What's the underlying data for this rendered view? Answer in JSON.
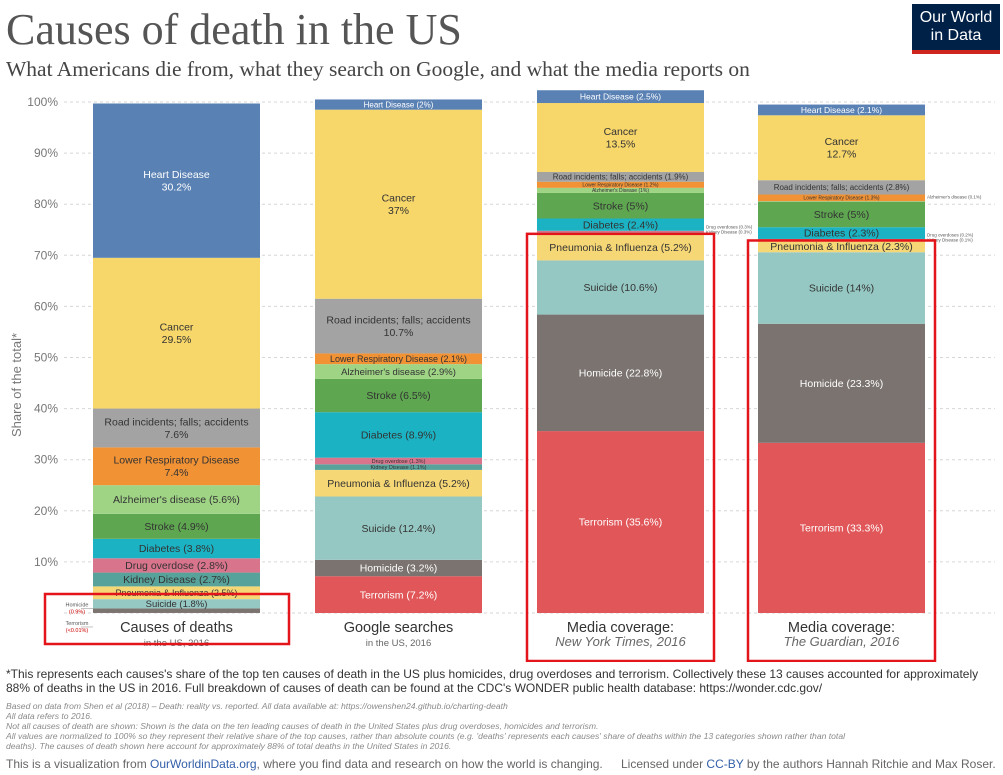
{
  "header": {
    "title": "Causes of death in the US",
    "subtitle": "What Americans die from, what they search on Google, and what the media reports on",
    "logo_line1": "Our World",
    "logo_line2": "in Data"
  },
  "chart_data": {
    "type": "bar",
    "stacked": true,
    "ylabel": "Share of the total*",
    "ylim": [
      0,
      100
    ],
    "yticks": [
      "10%",
      "20%",
      "30%",
      "40%",
      "50%",
      "60%",
      "70%",
      "80%",
      "90%",
      "100%"
    ],
    "grid": true,
    "categories": [
      {
        "label": "Causes of deaths",
        "sub": "in the US, 2016"
      },
      {
        "label": "Google searches",
        "sub": "in the US, 2016"
      },
      {
        "label": "Media coverage:",
        "sub": "New York Times, 2016"
      },
      {
        "label": "Media coverage:",
        "sub": "The Guardian, 2016"
      }
    ],
    "colors": {
      "Terrorism": "#e15759",
      "Homicide": "#7a7370",
      "Suicide": "#96c8c3",
      "Pneumonia & Influenza": "#f6d776",
      "Kidney Disease": "#57a29a",
      "Drug overdose": "#d9748d",
      "Diabetes": "#1bb3c3",
      "Stroke": "#5ea650",
      "Alzheimer's disease": "#9fd485",
      "Lower Respiratory Disease": "#f19235",
      "Road incidents; falls; accidents": "#a3a3a3",
      "Cancer": "#f7d66a",
      "Heart Disease": "#5a81b4"
    },
    "series": [
      {
        "name": "Terrorism",
        "values": [
          0.01,
          7.2,
          35.6,
          33.3
        ]
      },
      {
        "name": "Homicide",
        "values": [
          0.9,
          3.2,
          22.8,
          23.3
        ]
      },
      {
        "name": "Suicide",
        "values": [
          1.8,
          12.4,
          10.6,
          14.0
        ]
      },
      {
        "name": "Pneumonia & Influenza",
        "values": [
          2.5,
          5.2,
          5.2,
          2.3
        ]
      },
      {
        "name": "Kidney Disease",
        "values": [
          2.7,
          1.1,
          0.3,
          0.1
        ]
      },
      {
        "name": "Drug overdose",
        "values": [
          2.8,
          1.3,
          0.3,
          0.2
        ]
      },
      {
        "name": "Diabetes",
        "values": [
          3.8,
          8.9,
          2.4,
          2.3
        ]
      },
      {
        "name": "Stroke",
        "values": [
          4.9,
          6.5,
          5.0,
          5.0
        ]
      },
      {
        "name": "Alzheimer's disease",
        "values": [
          5.6,
          2.9,
          1.0,
          0.1
        ]
      },
      {
        "name": "Lower Respiratory Disease",
        "values": [
          7.4,
          2.1,
          1.2,
          1.3
        ]
      },
      {
        "name": "Road incidents; falls; accidents",
        "values": [
          7.6,
          10.7,
          1.9,
          2.8
        ]
      },
      {
        "name": "Cancer",
        "values": [
          29.5,
          37.0,
          13.5,
          12.7
        ]
      },
      {
        "name": "Heart Disease",
        "values": [
          30.2,
          2.0,
          2.5,
          2.1
        ]
      }
    ],
    "bar_labels": [
      [
        {
          "series": "Heart Disease",
          "lines": [
            "Heart Disease",
            "30.2%"
          ],
          "color": "#ffffff"
        },
        {
          "series": "Cancer",
          "lines": [
            "Cancer",
            "29.5%"
          ]
        },
        {
          "series": "Road incidents; falls; accidents",
          "lines": [
            "Road incidents; falls; accidents",
            "7.6%"
          ]
        },
        {
          "series": "Lower Respiratory Disease",
          "lines": [
            "Lower Respiratory Disease",
            "7.4%"
          ]
        },
        {
          "series": "Alzheimer's disease",
          "lines": [
            "Alzheimer's disease (5.6%)"
          ]
        },
        {
          "series": "Stroke",
          "lines": [
            "Stroke (4.9%)"
          ]
        },
        {
          "series": "Diabetes",
          "lines": [
            "Diabetes (3.8%)"
          ]
        },
        {
          "series": "Drug overdose",
          "lines": [
            "Drug overdose (2.8%)"
          ]
        },
        {
          "series": "Kidney Disease",
          "lines": [
            "Kidney Disease (2.7%)"
          ]
        },
        {
          "series": "Pneumonia & Influenza",
          "lines": [
            "Pneumonia & Influenza (2.5%)"
          ],
          "size": 9
        },
        {
          "series": "Suicide",
          "lines": [
            "Suicide (1.8%)"
          ],
          "size": 9.5
        }
      ],
      [
        {
          "series": "Heart Disease",
          "lines": [
            "Heart Disease (2%)"
          ],
          "color": "#ffffff",
          "size": 8
        },
        {
          "series": "Cancer",
          "lines": [
            "Cancer",
            "37%"
          ]
        },
        {
          "series": "Road incidents; falls; accidents",
          "lines": [
            "Road incidents; falls; accidents",
            "10.7%"
          ]
        },
        {
          "series": "Lower Respiratory Disease",
          "lines": [
            "Lower Respiratory Disease (2.1%)"
          ],
          "size": 9
        },
        {
          "series": "Alzheimer's disease",
          "lines": [
            "Alzheimer's disease (2.9%)"
          ],
          "size": 9.5
        },
        {
          "series": "Stroke",
          "lines": [
            "Stroke (6.5%)"
          ]
        },
        {
          "series": "Diabetes",
          "lines": [
            "Diabetes (8.9%)"
          ]
        },
        {
          "series": "Drug overdose",
          "lines": [
            "Drug overdose (1.3%)"
          ],
          "size": 5.5
        },
        {
          "series": "Kidney Disease",
          "lines": [
            "Kidney Disease (1.1%)"
          ],
          "size": 5.5
        },
        {
          "series": "Pneumonia & Influenza",
          "lines": [
            "Pneumonia & Influenza (5.2%)"
          ]
        },
        {
          "series": "Suicide",
          "lines": [
            "Suicide (12.4%)"
          ]
        },
        {
          "series": "Homicide",
          "lines": [
            "Homicide (3.2%)"
          ],
          "color": "#ffffff"
        },
        {
          "series": "Terrorism",
          "lines": [
            "Terrorism (7.2%)"
          ],
          "color": "#ffffff"
        }
      ],
      [
        {
          "series": "Heart Disease",
          "lines": [
            "Heart Disease (2.5%)"
          ],
          "color": "#ffffff",
          "size": 8.5
        },
        {
          "series": "Cancer",
          "lines": [
            "Cancer",
            "13.5%"
          ]
        },
        {
          "series": "Road incidents; falls; accidents",
          "lines": [
            "Road incidents; falls; accidents (1.9%)"
          ],
          "size": 8
        },
        {
          "series": "Lower Respiratory Disease",
          "lines": [
            "Lower Respiratory Disease (1.2%)"
          ],
          "size": 5
        },
        {
          "series": "Alzheimer's disease",
          "lines": [
            "Alzheimer's Disease (1%)"
          ],
          "size": 5
        },
        {
          "series": "Stroke",
          "lines": [
            "Stroke (5%)"
          ]
        },
        {
          "series": "Diabetes",
          "lines": [
            "Diabetes (2.4%)"
          ]
        },
        {
          "series": "Pneumonia & Influenza",
          "lines": [
            "Pneumonia & Influenza (5.2%)"
          ]
        },
        {
          "series": "Suicide",
          "lines": [
            "Suicide (10.6%)"
          ]
        },
        {
          "series": "Homicide",
          "lines": [
            "Homicide (22.8%)"
          ],
          "color": "#ffffff"
        },
        {
          "series": "Terrorism",
          "lines": [
            "Terrorism (35.6%)"
          ],
          "color": "#ffffff"
        }
      ],
      [
        {
          "series": "Heart Disease",
          "lines": [
            "Heart Disease (2.1%)"
          ],
          "color": "#ffffff",
          "size": 8.5
        },
        {
          "series": "Cancer",
          "lines": [
            "Cancer",
            "12.7%"
          ]
        },
        {
          "series": "Road incidents; falls; accidents",
          "lines": [
            "Road incidents; falls; accidents (2.8%)"
          ],
          "size": 8
        },
        {
          "series": "Lower Respiratory Disease",
          "lines": [
            "Lower Respiratory Disease (1.3%)"
          ],
          "size": 5
        },
        {
          "series": "Stroke",
          "lines": [
            "Stroke (5%)"
          ]
        },
        {
          "series": "Diabetes",
          "lines": [
            "Diabetes (2.3%)"
          ]
        },
        {
          "series": "Pneumonia & Influenza",
          "lines": [
            "Pneumonia & Influenza (2.3%)"
          ]
        },
        {
          "series": "Suicide",
          "lines": [
            "Suicide (14%)"
          ]
        },
        {
          "series": "Homicide",
          "lines": [
            "Homicide (23.3%)"
          ],
          "color": "#ffffff"
        },
        {
          "series": "Terrorism",
          "lines": [
            "Terrorism (33.3%)"
          ],
          "color": "#ffffff"
        }
      ]
    ],
    "side_annotations": [
      {
        "bar": 0,
        "side": "left",
        "lines": [
          "Homicide",
          "(0.9%)"
        ],
        "at_series": "Homicide"
      },
      {
        "bar": 0,
        "side": "left",
        "lines": [
          "Terrorism",
          "(<0.01%)"
        ],
        "at_series": "Terrorism",
        "offset": 16
      },
      {
        "bar": 2,
        "side": "right",
        "lines": [
          "Drug overdoses (0.3%)",
          "Kidney Disease (0.3%)"
        ],
        "at_series": "Drug overdose"
      },
      {
        "bar": 3,
        "side": "right",
        "lines": [
          "Alzheimer's disease (0.1%)"
        ],
        "at_series": "Alzheimer's disease"
      },
      {
        "bar": 3,
        "side": "right",
        "lines": [
          "Drug overdoses (0.2%)",
          "Kidney Disease (0.1%)"
        ],
        "at_series": "Drug overdose"
      }
    ],
    "highlight_boxes": [
      {
        "type": "category-label",
        "bar": 0
      },
      {
        "type": "media-section",
        "bar": 2
      },
      {
        "type": "media-section",
        "bar": 3
      }
    ]
  },
  "footer": {
    "note": "*This represents each causes's share of the top ten causes of death in the US plus homicides, drug overdoses and terrorism. Collectively these 13 causes accounted for approximately 88% of deaths in the US in 2016. Full breakdown of causes of death can be found at the CDC's WONDER public health database: https://wonder.cdc.gov/",
    "source_lines": [
      "Based on data from Shen et al (2018) – Death: reality vs. reported. All data available at: https://owenshen24.github.io/charting-death",
      "All data refers to 2016.",
      "Not all causes of death are shown: Shown is the data on the ten leading causes of death in the United States plus drug overdoses, homicides and terrorism.",
      "All values are normalized to 100% so they represent their relative share of the top causes, rather than absolute counts (e.g. 'deaths' represents each causes' share of deaths within the 13 categories shown rather than total",
      "deaths). The causes of death shown here account for approximately 88% of total deaths in the United States in 2016."
    ],
    "visualization_prefix": "This is a visualization from ",
    "visualization_link": "OurWorldinData.org",
    "visualization_suffix": ", where you find data and research on how the world is changing.",
    "license_prefix": "Licensed under ",
    "license_link": "CC-BY",
    "license_suffix": " by the authors Hannah Ritchie and Max Roser."
  }
}
